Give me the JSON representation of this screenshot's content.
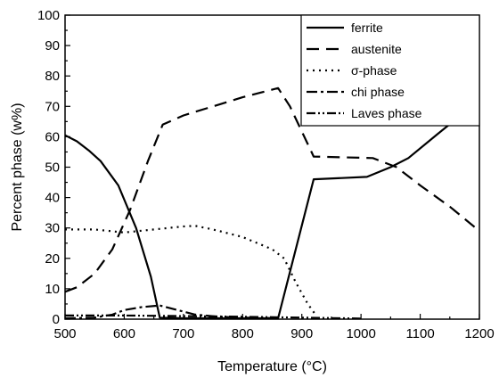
{
  "chart_data": {
    "type": "line",
    "title": "",
    "xlabel": "Temperature (°C)",
    "ylabel": "Percent phase (w%)",
    "xlim": [
      500,
      1200
    ],
    "ylim": [
      0,
      100
    ],
    "xticks": [
      500,
      600,
      700,
      800,
      900,
      1000,
      1100,
      1200
    ],
    "yticks": [
      0,
      10,
      20,
      30,
      40,
      50,
      60,
      70,
      80,
      90,
      100
    ],
    "grid": false,
    "legend_position": "top-right",
    "series": [
      {
        "name": "ferrite",
        "dash": "solid",
        "x": [
          500,
          520,
          540,
          560,
          590,
          620,
          645,
          660,
          700,
          750,
          800,
          860,
          920,
          1010,
          1050,
          1080,
          1130,
          1200
        ],
        "y": [
          60.5,
          58.5,
          55.5,
          52,
          44,
          30,
          14,
          0.5,
          0.3,
          0.3,
          0.3,
          0.3,
          46,
          46.8,
          50,
          53,
          61,
          72
        ]
      },
      {
        "name": "austenite",
        "dash": "longdash",
        "x": [
          500,
          520,
          550,
          580,
          610,
          640,
          665,
          700,
          750,
          800,
          860,
          880,
          920,
          1020,
          1060,
          1100,
          1150,
          1200
        ],
        "y": [
          9,
          10.5,
          15,
          23,
          36,
          52,
          64,
          67,
          70,
          73,
          76,
          70,
          53.5,
          53,
          50,
          44,
          37,
          29
        ]
      },
      {
        "name": "σ-phase",
        "dash": "dot",
        "x": [
          500,
          550,
          600,
          650,
          700,
          720,
          750,
          800,
          850,
          870,
          890,
          910,
          925
        ],
        "y": [
          29.5,
          29.5,
          28.5,
          29.5,
          30.5,
          30.7,
          29.5,
          27,
          23,
          20,
          12,
          5,
          1
        ]
      },
      {
        "name": "chi phase",
        "dash": "dashdot",
        "x": [
          500,
          550,
          580,
          600,
          630,
          660,
          690,
          720,
          760,
          800,
          860
        ],
        "y": [
          0.3,
          0.5,
          1.5,
          3,
          4,
          4.5,
          3,
          1.5,
          0.8,
          0.5,
          0.3
        ]
      },
      {
        "name": "Laves phase",
        "dash": "dashdotdot",
        "x": [
          500,
          600,
          700,
          800,
          900,
          1000
        ],
        "y": [
          1.2,
          1.2,
          1,
          0.8,
          0.5,
          0.2
        ]
      }
    ]
  }
}
